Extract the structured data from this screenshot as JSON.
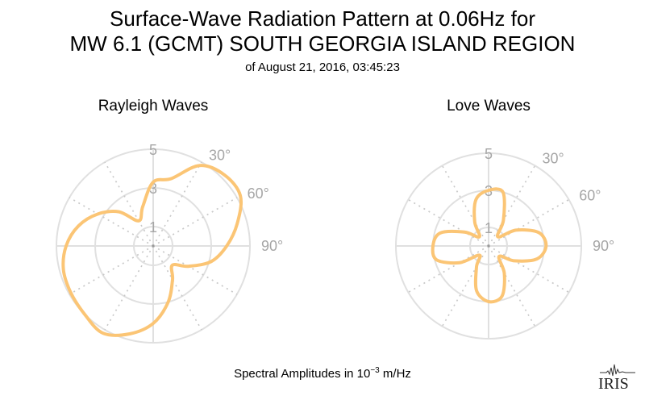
{
  "title_line1": "Surface-Wave Radiation Pattern at 0.06Hz for",
  "title_line2": "MW 6.1 (GCMT) SOUTH GEORGIA ISLAND REGION",
  "subtitle": "of August 21, 2016, 03:45:23",
  "footer": {
    "prefix": "Spectral Amplitudes in ",
    "base": "10",
    "exponent": "−3",
    "suffix": " m/Hz"
  },
  "logo_text": "IRIS",
  "colors": {
    "pattern": "#fbc575",
    "grid": "#e0e0e0",
    "label": "#a6a6a6"
  },
  "chart_data": [
    {
      "type": "polar",
      "title": "Rayleigh Waves",
      "r_ticks": [
        "1",
        "3",
        "5"
      ],
      "r_max": 5,
      "angle_labels": [
        "30°",
        "60°",
        "90°"
      ],
      "azimuth_deg": [
        0,
        15,
        30,
        45,
        60,
        75,
        90,
        105,
        120,
        135,
        150,
        165,
        180,
        195,
        210,
        225,
        240,
        255,
        270,
        285,
        300,
        315,
        330,
        345
      ],
      "values": [
        3.3,
        3.6,
        4.8,
        5.2,
        5.2,
        4.5,
        3.8,
        3.1,
        2.1,
        1.4,
        2.0,
        3.0,
        4.0,
        4.7,
        5.2,
        5.0,
        4.9,
        4.8,
        4.5,
        4.0,
        3.3,
        2.5,
        1.5,
        2.1
      ]
    },
    {
      "type": "polar",
      "title": "Love Waves",
      "r_ticks": [
        "1",
        "3",
        "5"
      ],
      "r_max": 5,
      "angle_labels": [
        "30°",
        "60°",
        "90°"
      ],
      "azimuth_deg": [
        0,
        15,
        30,
        45,
        60,
        75,
        90,
        105,
        120,
        135,
        150,
        165,
        180,
        195,
        210,
        225,
        240,
        255,
        270,
        285,
        300,
        315,
        330,
        345
      ],
      "values": [
        3.0,
        3.0,
        1.6,
        0.7,
        1.7,
        2.8,
        3.1,
        2.7,
        1.6,
        0.8,
        1.7,
        2.8,
        3.0,
        2.5,
        1.3,
        0.7,
        1.8,
        2.9,
        3.0,
        2.7,
        1.5,
        0.7,
        1.5,
        2.6
      ]
    }
  ]
}
